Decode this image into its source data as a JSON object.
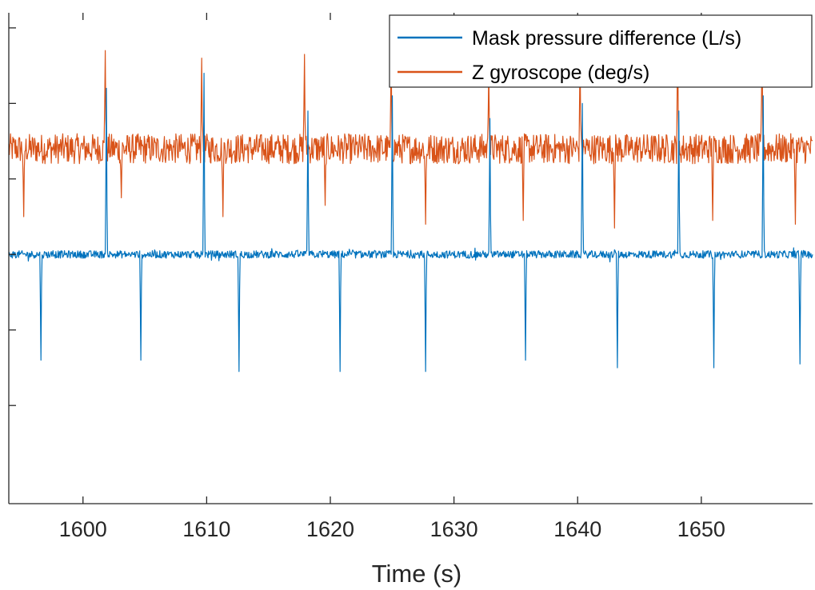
{
  "chart_data": {
    "type": "line",
    "title": "",
    "xlabel": "Time (s)",
    "ylabel": "",
    "xlim": [
      1594,
      1659
    ],
    "ylim": [
      -3.3,
      3.2
    ],
    "x_ticks": [
      1600,
      1610,
      1620,
      1630,
      1640,
      1650
    ],
    "x_tick_labels": [
      "1600",
      "1610",
      "1620",
      "1630",
      "1640",
      "1650"
    ],
    "y_ticks": [
      -2,
      -1,
      0,
      1,
      2,
      3
    ],
    "y_tick_labels_visible": false,
    "grid": false,
    "legend_position": "top-right",
    "series": [
      {
        "name": "Mask pressure difference (L/s)",
        "color": "#0072BD",
        "baseline": 0,
        "noise": 0.05,
        "events": [
          {
            "x": 1596.6,
            "value": -1.4
          },
          {
            "x": 1601.9,
            "value": 2.2
          },
          {
            "x": 1604.7,
            "value": -1.4
          },
          {
            "x": 1609.8,
            "value": 2.4
          },
          {
            "x": 1612.6,
            "value": -1.55
          },
          {
            "x": 1618.2,
            "value": 1.9
          },
          {
            "x": 1620.8,
            "value": -1.55
          },
          {
            "x": 1625.0,
            "value": 2.1
          },
          {
            "x": 1627.7,
            "value": -1.55
          },
          {
            "x": 1632.9,
            "value": 1.8
          },
          {
            "x": 1635.8,
            "value": -1.4
          },
          {
            "x": 1640.4,
            "value": 2.0
          },
          {
            "x": 1643.2,
            "value": -1.5
          },
          {
            "x": 1648.2,
            "value": 1.9
          },
          {
            "x": 1651.0,
            "value": -1.5
          },
          {
            "x": 1655.0,
            "value": 2.1
          },
          {
            "x": 1658.0,
            "value": -1.45
          }
        ]
      },
      {
        "name": "Z gyroscope (deg/s)",
        "color": "#D95319",
        "baseline": 1.4,
        "noise": 0.2,
        "events": [
          {
            "x": 1595.2,
            "value": 0.5
          },
          {
            "x": 1601.8,
            "value": 2.7
          },
          {
            "x": 1603.1,
            "value": 0.75
          },
          {
            "x": 1609.6,
            "value": 2.6
          },
          {
            "x": 1611.3,
            "value": 0.5
          },
          {
            "x": 1617.9,
            "value": 2.65
          },
          {
            "x": 1619.6,
            "value": 0.65
          },
          {
            "x": 1624.9,
            "value": 2.7
          },
          {
            "x": 1627.7,
            "value": 0.4
          },
          {
            "x": 1632.8,
            "value": 2.45
          },
          {
            "x": 1635.6,
            "value": 0.45
          },
          {
            "x": 1640.2,
            "value": 2.65
          },
          {
            "x": 1643.0,
            "value": 0.35
          },
          {
            "x": 1648.1,
            "value": 2.95
          },
          {
            "x": 1650.9,
            "value": 0.45
          },
          {
            "x": 1654.9,
            "value": 2.85
          },
          {
            "x": 1657.6,
            "value": 0.4
          }
        ]
      }
    ]
  }
}
